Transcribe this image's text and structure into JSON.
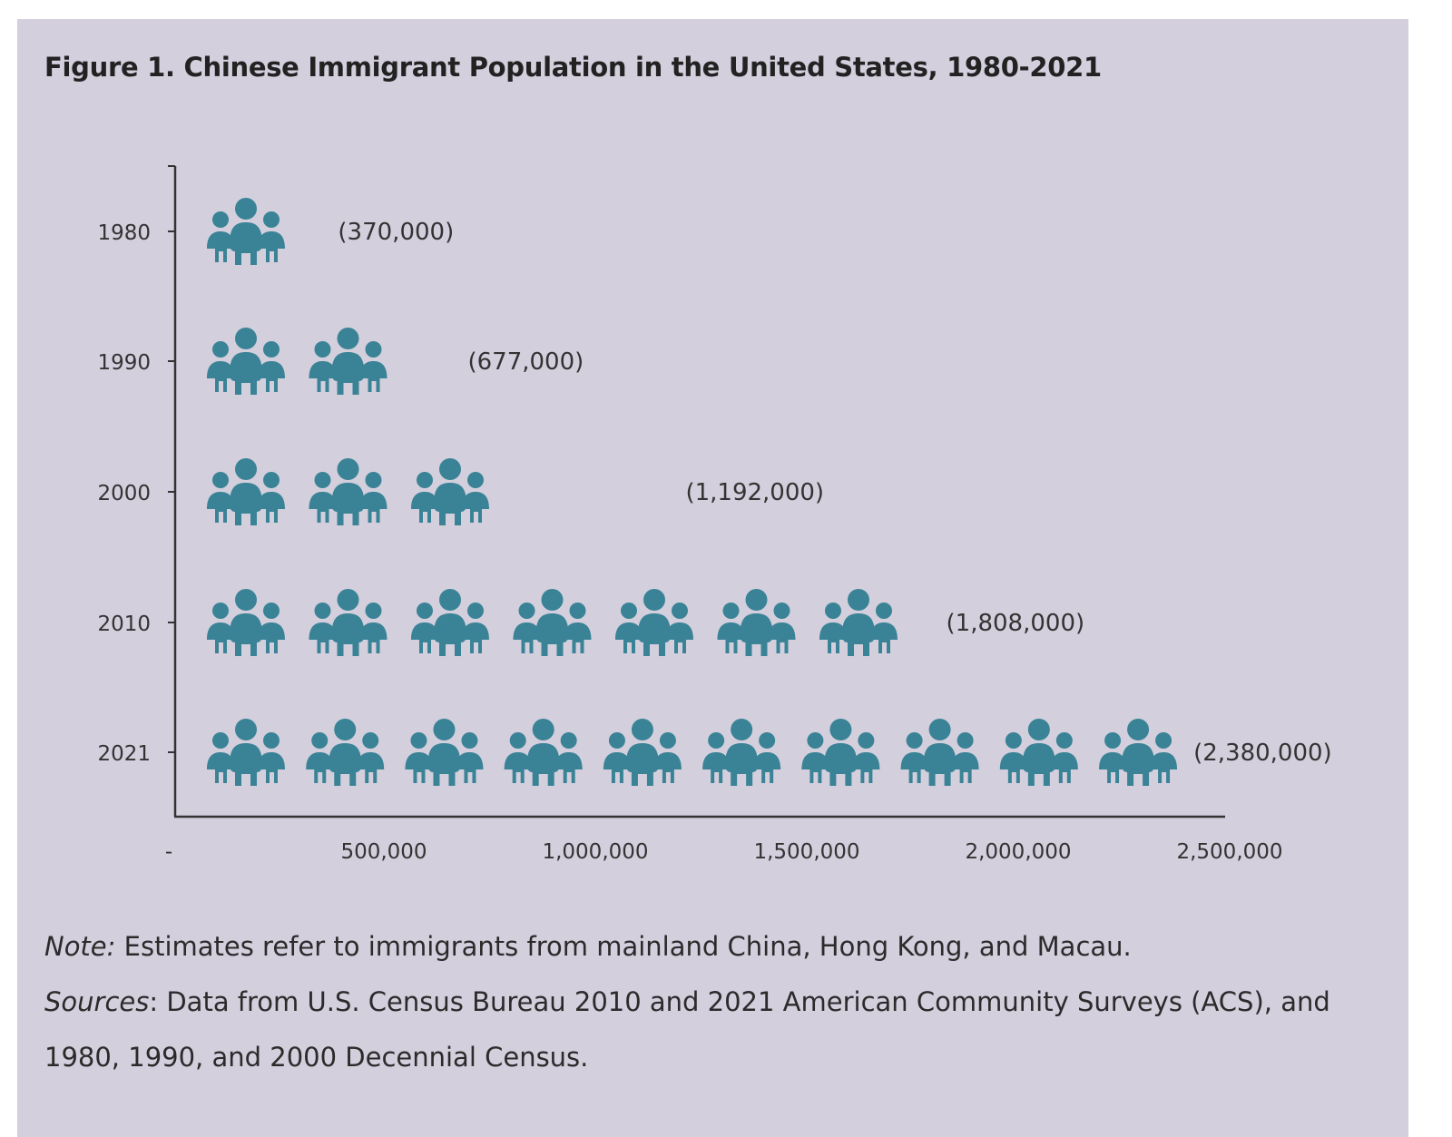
{
  "title": "Figure 1. Chinese Immigrant Population in the United States, 1980-2021",
  "note": {
    "label": "Note:",
    "text": " Estimates refer to immigrants from mainland China, Hong Kong, and Macau."
  },
  "sources": {
    "label": "Sources",
    "text": ": Data from U.S. Census Bureau 2010 and 2021 American Community Surveys (ACS), and 1980, 1990, and 2000 Decennial Census."
  },
  "colors": {
    "icon": "#3a8396",
    "axis": "#333333",
    "background": "#d3cfdd"
  },
  "icon_name": "people-group-icon",
  "chart_data": {
    "type": "bar",
    "style": "pictograph",
    "orientation": "horizontal",
    "categories": [
      "1980",
      "1990",
      "2000",
      "2010",
      "2021"
    ],
    "values": [
      370000,
      677000,
      1192000,
      1808000,
      2380000
    ],
    "icon_counts": [
      1,
      2,
      3,
      7,
      10
    ],
    "value_labels": [
      "(370,000)",
      "(677,000)",
      "(1,192,000)",
      "(1,808,000)",
      "(2,380,000)"
    ],
    "x_ticks": [
      0,
      500000,
      1000000,
      1500000,
      2000000,
      2500000
    ],
    "x_tick_labels": [
      "-",
      "500,000",
      "1,000,000",
      "1,500,000",
      "2,000,000",
      "2,500,000"
    ],
    "xlim": [
      0,
      2500000
    ],
    "grid": false,
    "legend": "none"
  }
}
